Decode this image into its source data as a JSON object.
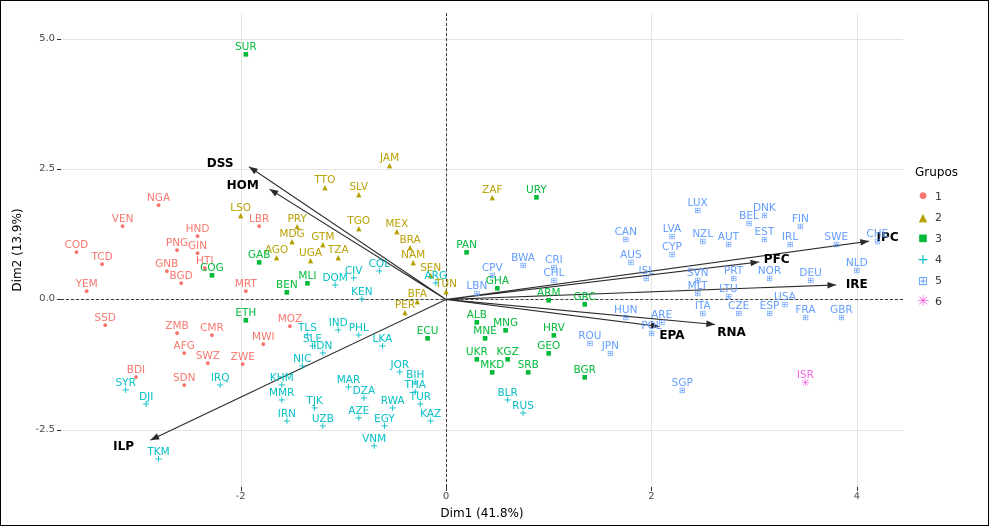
{
  "chart_data": {
    "type": "scatter",
    "subtype": "pca-biplot",
    "title": "",
    "xlabel": "Dim1 (41.8%)",
    "ylabel": "Dim2 (13.9%)",
    "xlim": [
      -3.75,
      4.45
    ],
    "ylim": [
      -3.6,
      5.5
    ],
    "x_ticks": [
      {
        "v": -2,
        "label": "-2"
      },
      {
        "v": 0,
        "label": "0"
      },
      {
        "v": 2,
        "label": "2"
      },
      {
        "v": 4,
        "label": "4"
      }
    ],
    "y_ticks": [
      {
        "v": -2.5,
        "label": "-2.5"
      },
      {
        "v": 0,
        "label": "0.0"
      },
      {
        "v": 2.5,
        "label": "2.5"
      },
      {
        "v": 5,
        "label": "5.0"
      }
    ],
    "grid": true,
    "zero_lines_dashed": true,
    "legend_title": "Grupos",
    "legend_position": "right",
    "groups": [
      {
        "id": "1",
        "color": "#F8766D",
        "marker": "dot"
      },
      {
        "id": "2",
        "color": "#B79F00",
        "marker": "triangle"
      },
      {
        "id": "3",
        "color": "#00BA38",
        "marker": "square"
      },
      {
        "id": "4",
        "color": "#00BFC4",
        "marker": "plus"
      },
      {
        "id": "5",
        "color": "#619CFF",
        "marker": "square-cross"
      },
      {
        "id": "6",
        "color": "#F564E3",
        "marker": "asterisk"
      }
    ],
    "points_format": [
      "label",
      "x",
      "y",
      "group"
    ],
    "points": [
      [
        "NGA",
        -2.8,
        1.95,
        "1"
      ],
      [
        "VEN",
        -3.15,
        1.55,
        "1"
      ],
      [
        "COD",
        -3.6,
        1.05,
        "1"
      ],
      [
        "TCD",
        -3.35,
        0.82,
        "1"
      ],
      [
        "PNG",
        -2.62,
        1.08,
        "1"
      ],
      [
        "GNB",
        -2.72,
        0.68,
        "1"
      ],
      [
        "YEM",
        -3.5,
        0.3,
        "1"
      ],
      [
        "SSD",
        -3.32,
        -0.35,
        "1"
      ],
      [
        "HND",
        -2.42,
        1.35,
        "1"
      ],
      [
        "GIN",
        -2.42,
        1.03,
        "1"
      ],
      [
        "HTI",
        -2.35,
        0.73,
        "1"
      ],
      [
        "LBR",
        -1.82,
        1.55,
        "1"
      ],
      [
        "BGD",
        -2.58,
        0.45,
        "1"
      ],
      [
        "MRT",
        -1.95,
        0.3,
        "1"
      ],
      [
        "ZMB",
        -2.62,
        -0.5,
        "1"
      ],
      [
        "CMR",
        -2.28,
        -0.55,
        "1"
      ],
      [
        "MWI",
        -1.78,
        -0.72,
        "1"
      ],
      [
        "MOZ",
        -1.52,
        -0.38,
        "1"
      ],
      [
        "AFG",
        -2.55,
        -0.9,
        "1"
      ],
      [
        "SWZ",
        -2.32,
        -1.08,
        "1"
      ],
      [
        "ZWE",
        -1.98,
        -1.1,
        "1"
      ],
      [
        "BDI",
        -3.02,
        -1.35,
        "1"
      ],
      [
        "SDN",
        -2.55,
        -1.5,
        "1"
      ],
      [
        "JAM",
        -0.55,
        2.72,
        "2"
      ],
      [
        "TTO",
        -1.18,
        2.3,
        "2"
      ],
      [
        "SLV",
        -0.85,
        2.15,
        "2"
      ],
      [
        "ZAF",
        0.45,
        2.1,
        "2"
      ],
      [
        "LSO",
        -2.0,
        1.75,
        "2"
      ],
      [
        "PRY",
        -1.45,
        1.55,
        "2"
      ],
      [
        "TGO",
        -0.85,
        1.5,
        "2"
      ],
      [
        "MEX",
        -0.48,
        1.45,
        "2"
      ],
      [
        "MDG",
        -1.5,
        1.25,
        "2"
      ],
      [
        "GTM",
        -1.2,
        1.2,
        "2"
      ],
      [
        "BRA",
        -0.35,
        1.15,
        "2"
      ],
      [
        "AGO",
        -1.65,
        0.95,
        "2"
      ],
      [
        "UGA",
        -1.32,
        0.9,
        "2"
      ],
      [
        "TZA",
        -1.05,
        0.95,
        "2"
      ],
      [
        "NAM",
        -0.32,
        0.85,
        "2"
      ],
      [
        "SEN",
        -0.15,
        0.6,
        "2"
      ],
      [
        "TUN",
        0.0,
        0.3,
        "2"
      ],
      [
        "BFA",
        -0.28,
        0.1,
        "2"
      ],
      [
        "PER",
        -0.4,
        -0.1,
        "2"
      ],
      [
        "SUR",
        -1.95,
        4.85,
        "3"
      ],
      [
        "URY",
        0.88,
        2.1,
        "3"
      ],
      [
        "PAN",
        0.2,
        1.05,
        "3"
      ],
      [
        "GAB",
        -1.82,
        0.85,
        "3"
      ],
      [
        "COG",
        -2.28,
        0.6,
        "3"
      ],
      [
        "MLI",
        -1.35,
        0.45,
        "3"
      ],
      [
        "BEN",
        -1.55,
        0.28,
        "3"
      ],
      [
        "ETH",
        -1.95,
        -0.25,
        "3"
      ],
      [
        "GHA",
        0.5,
        0.35,
        "3"
      ],
      [
        "ARM",
        1.0,
        0.12,
        "3"
      ],
      [
        "GRC",
        1.35,
        0.05,
        "3"
      ],
      [
        "ALB",
        0.3,
        -0.3,
        "3"
      ],
      [
        "MNG",
        0.58,
        -0.45,
        "3"
      ],
      [
        "MNE",
        0.38,
        -0.6,
        "3"
      ],
      [
        "HRV",
        1.05,
        -0.55,
        "3"
      ],
      [
        "GEO",
        1.0,
        -0.9,
        "3"
      ],
      [
        "ECU",
        -0.18,
        -0.6,
        "3"
      ],
      [
        "UKR",
        0.3,
        -1.0,
        "3"
      ],
      [
        "KGZ",
        0.6,
        -1.0,
        "3"
      ],
      [
        "MKD",
        0.45,
        -1.25,
        "3"
      ],
      [
        "SRB",
        0.8,
        -1.25,
        "3"
      ],
      [
        "BGR",
        1.35,
        -1.35,
        "3"
      ],
      [
        "CIV",
        -0.9,
        0.55,
        "4"
      ],
      [
        "COL",
        -0.65,
        0.68,
        "4"
      ],
      [
        "DOM",
        -1.08,
        0.42,
        "4"
      ],
      [
        "ARG",
        -0.1,
        0.45,
        "4"
      ],
      [
        "KEN",
        -0.82,
        0.15,
        "4"
      ],
      [
        "TLS",
        -1.35,
        -0.55,
        "4"
      ],
      [
        "SLE",
        -1.3,
        -0.75,
        "4"
      ],
      [
        "IND",
        -1.05,
        -0.45,
        "4"
      ],
      [
        "PHL",
        -0.85,
        -0.55,
        "4"
      ],
      [
        "LKA",
        -0.62,
        -0.75,
        "4"
      ],
      [
        "IDN",
        -1.2,
        -0.9,
        "4"
      ],
      [
        "NIC",
        -1.4,
        -1.15,
        "4"
      ],
      [
        "KHM",
        -1.6,
        -1.5,
        "4"
      ],
      [
        "MMR",
        -1.6,
        -1.8,
        "4"
      ],
      [
        "IRQ",
        -2.2,
        -1.5,
        "4"
      ],
      [
        "SYR",
        -3.12,
        -1.6,
        "4"
      ],
      [
        "DJI",
        -2.92,
        -1.88,
        "4"
      ],
      [
        "TKM",
        -2.8,
        -2.92,
        "4"
      ],
      [
        "TJK",
        -1.28,
        -1.95,
        "4"
      ],
      [
        "IRN",
        -1.55,
        -2.2,
        "4"
      ],
      [
        "UZB",
        -1.2,
        -2.3,
        "4"
      ],
      [
        "AZE",
        -0.85,
        -2.15,
        "4"
      ],
      [
        "EGY",
        -0.6,
        -2.3,
        "4"
      ],
      [
        "VNM",
        -0.7,
        -2.68,
        "4"
      ],
      [
        "KAZ",
        -0.15,
        -2.2,
        "4"
      ],
      [
        "RWA",
        -0.52,
        -1.95,
        "4"
      ],
      [
        "DZA",
        -0.8,
        -1.75,
        "4"
      ],
      [
        "MAR",
        -0.95,
        -1.55,
        "4"
      ],
      [
        "BIH",
        -0.3,
        -1.45,
        "4"
      ],
      [
        "JOR",
        -0.45,
        -1.25,
        "4"
      ],
      [
        "THA",
        -0.3,
        -1.65,
        "4"
      ],
      [
        "TUR",
        -0.25,
        -1.88,
        "4"
      ],
      [
        "BLR",
        0.6,
        -1.8,
        "4"
      ],
      [
        "RUS",
        0.75,
        -2.05,
        "4"
      ],
      [
        "BWA",
        0.75,
        0.8,
        "5"
      ],
      [
        "CRI",
        1.05,
        0.75,
        "5"
      ],
      [
        "CHL",
        1.05,
        0.5,
        "5"
      ],
      [
        "CPV",
        0.45,
        0.6,
        "5"
      ],
      [
        "LBN",
        0.3,
        0.25,
        "5"
      ],
      [
        "CAN",
        1.75,
        1.3,
        "5"
      ],
      [
        "LVA",
        2.2,
        1.35,
        "5"
      ],
      [
        "LUX",
        2.45,
        1.85,
        "5"
      ],
      [
        "NZL",
        2.5,
        1.25,
        "5"
      ],
      [
        "AUT",
        2.75,
        1.2,
        "5"
      ],
      [
        "BEL",
        2.95,
        1.6,
        "5"
      ],
      [
        "DNK",
        3.1,
        1.75,
        "5"
      ],
      [
        "FIN",
        3.45,
        1.55,
        "5"
      ],
      [
        "EST",
        3.1,
        1.3,
        "5"
      ],
      [
        "IRL",
        3.35,
        1.2,
        "5"
      ],
      [
        "SWE",
        3.8,
        1.2,
        "5"
      ],
      [
        "CHE",
        4.2,
        1.25,
        "5"
      ],
      [
        "CYP",
        2.2,
        1.0,
        "5"
      ],
      [
        "AUS",
        1.8,
        0.85,
        "5"
      ],
      [
        "ISL",
        1.95,
        0.55,
        "5"
      ],
      [
        "SVN",
        2.45,
        0.5,
        "5"
      ],
      [
        "PRT",
        2.8,
        0.55,
        "5"
      ],
      [
        "NOR",
        3.15,
        0.55,
        "5"
      ],
      [
        "DEU",
        3.55,
        0.5,
        "5"
      ],
      [
        "NLD",
        4.0,
        0.7,
        "5"
      ],
      [
        "MLT",
        2.45,
        0.25,
        "5"
      ],
      [
        "LTU",
        2.75,
        0.2,
        "5"
      ],
      [
        "ITA",
        2.5,
        -0.12,
        "5"
      ],
      [
        "CZE",
        2.85,
        -0.12,
        "5"
      ],
      [
        "ESP",
        3.15,
        -0.12,
        "5"
      ],
      [
        "USA",
        3.3,
        0.05,
        "5"
      ],
      [
        "FRA",
        3.5,
        -0.2,
        "5"
      ],
      [
        "GBR",
        3.85,
        -0.2,
        "5"
      ],
      [
        "HUN",
        1.75,
        -0.2,
        "5"
      ],
      [
        "ARE",
        2.1,
        -0.3,
        "5"
      ],
      [
        "POL",
        2.0,
        -0.5,
        "5"
      ],
      [
        "ROU",
        1.4,
        -0.7,
        "5"
      ],
      [
        "JPN",
        1.6,
        -0.9,
        "5"
      ],
      [
        "SGP",
        2.3,
        -1.6,
        "5"
      ],
      [
        "ISR",
        3.5,
        -1.45,
        "6"
      ]
    ],
    "arrows": [
      {
        "label": "DSS",
        "x": -1.92,
        "y": 2.55,
        "label_x": -2.2,
        "label_y": 2.62
      },
      {
        "label": "HOM",
        "x": -1.72,
        "y": 2.12,
        "label_x": -1.98,
        "label_y": 2.2
      },
      {
        "label": "ILP",
        "x": -2.88,
        "y": -2.7,
        "label_x": -3.14,
        "label_y": -2.82
      },
      {
        "label": "IPC",
        "x": 4.12,
        "y": 1.12,
        "label_x": 4.3,
        "label_y": 1.2
      },
      {
        "label": "IRE",
        "x": 3.8,
        "y": 0.28,
        "label_x": 4.0,
        "label_y": 0.3
      },
      {
        "label": "PFC",
        "x": 3.05,
        "y": 0.72,
        "label_x": 3.22,
        "label_y": 0.78
      },
      {
        "label": "EPA",
        "x": 2.08,
        "y": -0.52,
        "label_x": 2.2,
        "label_y": -0.68
      },
      {
        "label": "RNA",
        "x": 2.62,
        "y": -0.48,
        "label_x": 2.78,
        "label_y": -0.62
      }
    ]
  }
}
